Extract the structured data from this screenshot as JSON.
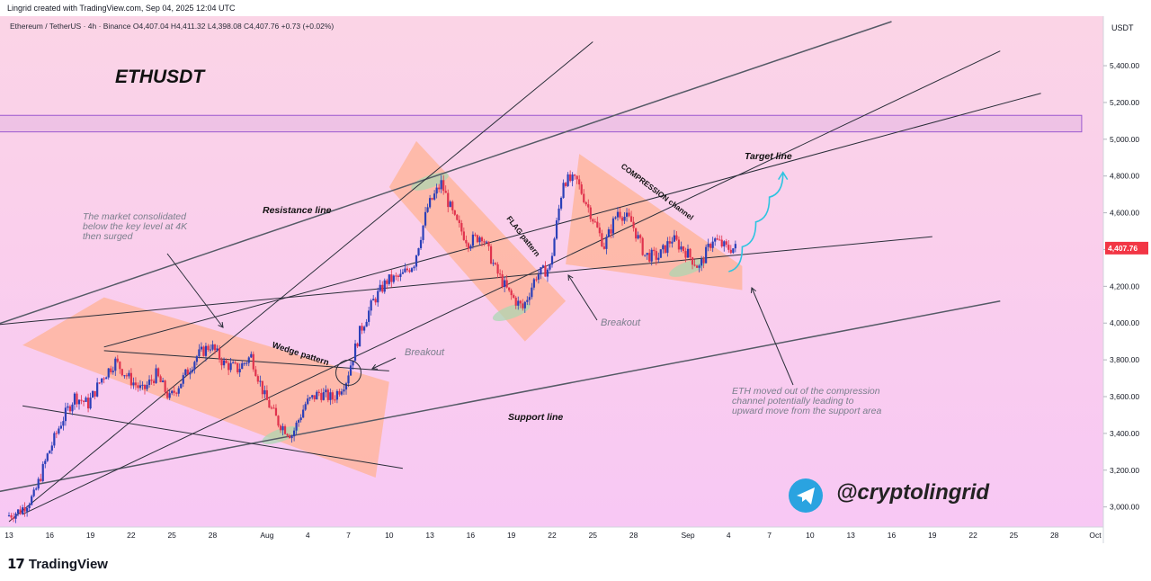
{
  "header": {
    "credit": "Lingrid created with TradingView.com, Sep 04, 2025 12:04 UTC",
    "legend": "Ethereum / TetherUS · 4h · Binance  O4,407.04  H4,411.32  L4,398.08  C4,407.76  +0.73 (+0.02%)"
  },
  "footer": {
    "brand": "TradingView",
    "logo_icon": "tradingview-logo-icon"
  },
  "colors": {
    "background_top": "#fbd4e6",
    "background_bottom": "#f8c8f4",
    "candle_up": "#2b3fb8",
    "candle_down": "#e0334d",
    "pattern_fill": "#ffb49a",
    "price_tag": "#f23645",
    "zone_stroke": "#9b59d0",
    "arrow": "#2ec4e0",
    "telegram": "#2aa3e0"
  },
  "chart_data": {
    "type": "candlestick",
    "title": "ETHUSDT",
    "symbol": "Ethereum / TetherUS",
    "interval": "4h",
    "exchange": "Binance",
    "currency": "USDT",
    "ohlc": {
      "open": 4407.04,
      "high": 4411.32,
      "low": 4398.08,
      "close": 4407.76,
      "change": 0.73,
      "change_pct": "+0.02%"
    },
    "last_price": "4,407.76",
    "ylim": [
      2920,
      5640
    ],
    "yticks": [
      3000,
      3200,
      3400,
      3600,
      3800,
      4000,
      4200,
      4400,
      4600,
      4800,
      5000,
      5200,
      5400
    ],
    "ytick_labels": [
      "3,000.00",
      "3,200.00",
      "3,400.00",
      "3,600.00",
      "3,800.00",
      "4,000.00",
      "4,200.00",
      "4,400.00",
      "4,600.00",
      "4,800.00",
      "5,000.00",
      "5,200.00",
      "5,400.00"
    ],
    "xaxis_start": "2025-07-13",
    "xaxis_end": "2025-10-01",
    "xtick_labels": [
      {
        "date": "2025-07-13",
        "label": "13"
      },
      {
        "date": "2025-07-16",
        "label": "16"
      },
      {
        "date": "2025-07-19",
        "label": "19"
      },
      {
        "date": "2025-07-22",
        "label": "22"
      },
      {
        "date": "2025-07-25",
        "label": "25"
      },
      {
        "date": "2025-07-28",
        "label": "28"
      },
      {
        "date": "2025-08-01",
        "label": "Aug"
      },
      {
        "date": "2025-08-04",
        "label": "4"
      },
      {
        "date": "2025-08-07",
        "label": "7"
      },
      {
        "date": "2025-08-10",
        "label": "10"
      },
      {
        "date": "2025-08-13",
        "label": "13"
      },
      {
        "date": "2025-08-16",
        "label": "16"
      },
      {
        "date": "2025-08-19",
        "label": "19"
      },
      {
        "date": "2025-08-22",
        "label": "22"
      },
      {
        "date": "2025-08-25",
        "label": "25"
      },
      {
        "date": "2025-08-28",
        "label": "28"
      },
      {
        "date": "2025-09-01",
        "label": "Sep"
      },
      {
        "date": "2025-09-04",
        "label": "4"
      },
      {
        "date": "2025-09-07",
        "label": "7"
      },
      {
        "date": "2025-09-10",
        "label": "10"
      },
      {
        "date": "2025-09-13",
        "label": "13"
      },
      {
        "date": "2025-09-16",
        "label": "16"
      },
      {
        "date": "2025-09-19",
        "label": "19"
      },
      {
        "date": "2025-09-22",
        "label": "22"
      },
      {
        "date": "2025-09-25",
        "label": "25"
      },
      {
        "date": "2025-09-28",
        "label": "28"
      },
      {
        "date": "2025-10-01",
        "label": "Oct"
      }
    ],
    "price_path": [
      [
        "2025-07-13",
        2950
      ],
      [
        "2025-07-14",
        2980
      ],
      [
        "2025-07-15",
        3060
      ],
      [
        "2025-07-16",
        3280
      ],
      [
        "2025-07-17",
        3460
      ],
      [
        "2025-07-18",
        3600
      ],
      [
        "2025-07-19",
        3560
      ],
      [
        "2025-07-20",
        3700
      ],
      [
        "2025-07-21",
        3790
      ],
      [
        "2025-07-22",
        3700
      ],
      [
        "2025-07-23",
        3630
      ],
      [
        "2025-07-24",
        3720
      ],
      [
        "2025-07-25",
        3590
      ],
      [
        "2025-07-26",
        3700
      ],
      [
        "2025-07-27",
        3820
      ],
      [
        "2025-07-28",
        3880
      ],
      [
        "2025-07-29",
        3780
      ],
      [
        "2025-07-30",
        3750
      ],
      [
        "2025-07-31",
        3820
      ],
      [
        "2025-08-01",
        3600
      ],
      [
        "2025-08-02",
        3460
      ],
      [
        "2025-08-03",
        3390
      ],
      [
        "2025-08-04",
        3560
      ],
      [
        "2025-08-05",
        3620
      ],
      [
        "2025-08-06",
        3590
      ],
      [
        "2025-08-07",
        3690
      ],
      [
        "2025-08-08",
        3950
      ],
      [
        "2025-08-09",
        4120
      ],
      [
        "2025-08-10",
        4230
      ],
      [
        "2025-08-11",
        4250
      ],
      [
        "2025-08-12",
        4330
      ],
      [
        "2025-08-13",
        4630
      ],
      [
        "2025-08-14",
        4760
      ],
      [
        "2025-08-15",
        4560
      ],
      [
        "2025-08-16",
        4440
      ],
      [
        "2025-08-17",
        4480
      ],
      [
        "2025-08-18",
        4290
      ],
      [
        "2025-08-19",
        4160
      ],
      [
        "2025-08-20",
        4080
      ],
      [
        "2025-08-21",
        4260
      ],
      [
        "2025-08-22",
        4300
      ],
      [
        "2025-08-23",
        4780
      ],
      [
        "2025-08-24",
        4770
      ],
      [
        "2025-08-25",
        4600
      ],
      [
        "2025-08-26",
        4420
      ],
      [
        "2025-08-27",
        4610
      ],
      [
        "2025-08-28",
        4550
      ],
      [
        "2025-08-29",
        4370
      ],
      [
        "2025-08-30",
        4360
      ],
      [
        "2025-08-31",
        4460
      ],
      [
        "2025-09-01",
        4390
      ],
      [
        "2025-09-02",
        4300
      ],
      [
        "2025-09-03",
        4460
      ],
      [
        "2025-09-04",
        4407.76
      ]
    ],
    "annotations": [
      {
        "text": "The market consolidated\nbelow the key level at 4K\nthen surged"
      },
      {
        "text": "Resistance line"
      },
      {
        "text": "Wedge pattern"
      },
      {
        "text": "Breakout"
      },
      {
        "text": "FLAG pattern"
      },
      {
        "text": "Breakout"
      },
      {
        "text": "COMPRESSION channel"
      },
      {
        "text": "Target line"
      },
      {
        "text": "Support line"
      },
      {
        "text": "ETH moved out of the compression\nchannel potentially leading to\nupward move from the support area"
      }
    ],
    "watermark": "@cryptolingrid",
    "legend": "none",
    "grid": false
  }
}
